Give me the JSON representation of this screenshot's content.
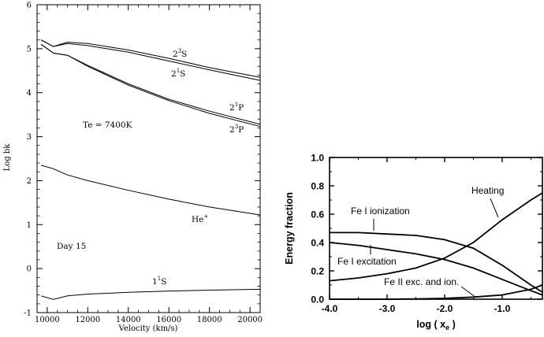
{
  "chart_data": [
    {
      "type": "line",
      "xlabel": "Velocity (km/s)",
      "ylabel": "Log bk",
      "xlim": [
        9500,
        20500
      ],
      "ylim": [
        -1,
        6
      ],
      "x_ticks": [
        "10000",
        "12000",
        "14000",
        "16000",
        "18000",
        "20000"
      ],
      "y_ticks": [
        "-1",
        "0",
        "1",
        "2",
        "3",
        "4",
        "5",
        "6"
      ],
      "annotations": {
        "te": "Te = 7400K",
        "day": "Day 15",
        "s23": {
          "base": "2",
          "sup": "3",
          "tail": "S"
        },
        "s21": {
          "base": "2",
          "sup": "1",
          "tail": "S"
        },
        "p21": {
          "base": "2",
          "sup": "1",
          "tail": "P"
        },
        "p23": {
          "base": "2",
          "sup": "3",
          "tail": "P"
        },
        "he": {
          "base": "He",
          "sup": "+",
          "tail": ""
        },
        "s11": {
          "base": "1",
          "sup": "1",
          "tail": "S"
        }
      },
      "series": [
        {
          "x": [
            9700,
            10300,
            11000,
            12000,
            14000,
            16000,
            18000,
            20500
          ],
          "y": [
            5.2,
            5.05,
            5.15,
            5.12,
            4.97,
            4.78,
            4.57,
            4.35
          ]
        },
        {
          "x": [
            9700,
            10300,
            11000,
            12000,
            14000,
            16000,
            18000,
            20500
          ],
          "y": [
            5.2,
            5.05,
            5.12,
            5.07,
            4.92,
            4.72,
            4.52,
            4.28
          ]
        },
        {
          "x": [
            9700,
            10300,
            11000,
            12000,
            14000,
            16000,
            18000,
            20500
          ],
          "y": [
            5.1,
            4.9,
            4.85,
            4.62,
            4.2,
            3.85,
            3.58,
            3.28
          ]
        },
        {
          "x": [
            9700,
            10300,
            11000,
            12000,
            14000,
            16000,
            18000,
            20500
          ],
          "y": [
            5.1,
            4.9,
            4.85,
            4.6,
            4.17,
            3.82,
            3.53,
            3.23
          ]
        },
        {
          "x": [
            9700,
            10300,
            11000,
            12000,
            14000,
            16000,
            18000,
            20500
          ],
          "y": [
            2.35,
            2.27,
            2.13,
            2.0,
            1.78,
            1.58,
            1.4,
            1.22
          ]
        },
        {
          "x": [
            9700,
            10300,
            11000,
            12000,
            14000,
            16000,
            18000,
            20500
          ],
          "y": [
            -0.62,
            -0.7,
            -0.62,
            -0.58,
            -0.54,
            -0.51,
            -0.49,
            -0.47
          ]
        }
      ]
    },
    {
      "type": "line",
      "xlabel": "log ( x",
      "xlabel_sub": "e",
      "xlabel_tail": " )",
      "ylabel": "Energy fraction",
      "xlim": [
        -4.0,
        -0.3
      ],
      "ylim": [
        0.0,
        1.0
      ],
      "x_ticks": [
        "-4.0",
        "-3.0",
        "-2.0",
        "-1.0"
      ],
      "y_ticks": [
        "0.0",
        "0.2",
        "0.4",
        "0.6",
        "0.8",
        "1.0"
      ],
      "series": [
        {
          "name": "Heating",
          "x": [
            -4.0,
            -3.5,
            -3.0,
            -2.5,
            -2.0,
            -1.5,
            -1.0,
            -0.5,
            -0.3
          ],
          "y": [
            0.13,
            0.15,
            0.18,
            0.22,
            0.29,
            0.4,
            0.56,
            0.7,
            0.75
          ]
        },
        {
          "name": "Fe I ionization",
          "x": [
            -4.0,
            -3.5,
            -3.0,
            -2.5,
            -2.0,
            -1.5,
            -1.0,
            -0.5,
            -0.3
          ],
          "y": [
            0.47,
            0.47,
            0.46,
            0.45,
            0.42,
            0.36,
            0.24,
            0.1,
            0.05
          ]
        },
        {
          "name": "Fe I excitation",
          "x": [
            -4.0,
            -3.5,
            -3.0,
            -2.5,
            -2.0,
            -1.5,
            -1.0,
            -0.5,
            -0.3
          ],
          "y": [
            0.4,
            0.38,
            0.35,
            0.32,
            0.28,
            0.22,
            0.14,
            0.06,
            0.03
          ]
        },
        {
          "name": "Fe II exc. and ion.",
          "x": [
            -4.0,
            -3.5,
            -3.0,
            -2.5,
            -2.0,
            -1.5,
            -1.0,
            -0.5,
            -0.3
          ],
          "y": [
            0.0,
            0.0,
            0.0,
            0.002,
            0.006,
            0.015,
            0.03,
            0.07,
            0.1
          ]
        }
      ]
    }
  ]
}
